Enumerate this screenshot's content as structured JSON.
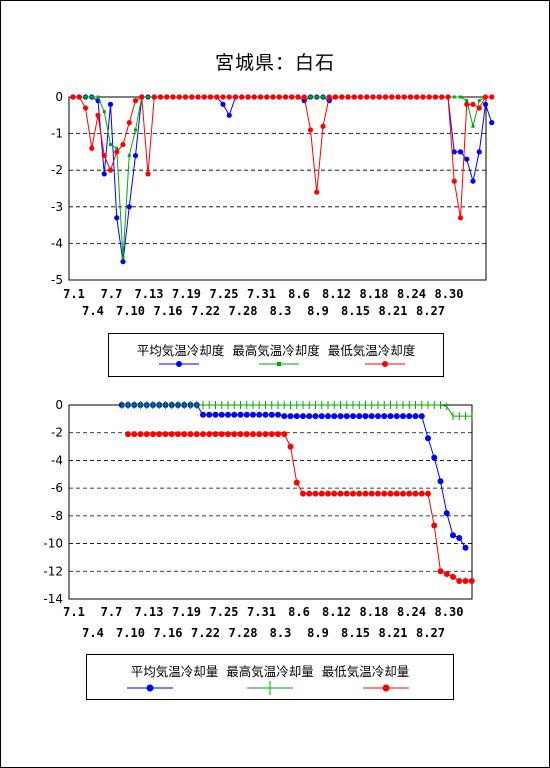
{
  "title": "宮城県：白石",
  "colors": {
    "avg": "#0000ff",
    "max": "#00aa00",
    "min": "#ff0000",
    "grid": "#000000"
  },
  "x_tick_rows": {
    "top": [
      "7.1",
      "7.7",
      "7.13",
      "7.19",
      "7.25",
      "7.31",
      "8.6",
      "8.12",
      "8.18",
      "8.24",
      "8.30"
    ],
    "bottom": [
      "7.4",
      "7.10",
      "7.16",
      "7.22",
      "7.28",
      "8.3",
      "8.9",
      "8.15",
      "8.21",
      "8.27"
    ]
  },
  "legends": {
    "daily": {
      "avg": "平均気温冷却度",
      "max": "最高気温冷却度",
      "min": "最低気温冷却度"
    },
    "cumulative": {
      "avg": "平均気温冷却量",
      "max": "最高気温冷却量",
      "min": "最低気温冷却量"
    }
  },
  "chart_data": [
    {
      "type": "line",
      "id": "daily",
      "x_start": "7.1",
      "y_ticks": [
        0,
        -1,
        -2,
        -3,
        -4,
        -5
      ],
      "ylim": [
        -5,
        0
      ],
      "grid": "horizontal dashed",
      "legend_placement": "bottom",
      "series": [
        {
          "name": "平均気温冷却度",
          "values": [
            0,
            0,
            0,
            0,
            -0.1,
            -2.1,
            -0.2,
            -3.3,
            -4.5,
            -3.0,
            -1.6,
            0,
            0,
            0,
            0,
            0,
            0,
            0,
            0,
            0,
            0,
            0,
            0,
            0,
            -0.2,
            -0.5,
            0,
            0,
            0,
            0,
            0,
            0,
            0,
            0,
            0,
            0,
            0,
            -0.1,
            0,
            0,
            0,
            -0.1,
            0,
            0,
            0,
            0,
            0,
            0,
            0,
            0,
            0,
            0,
            0,
            0,
            0,
            0,
            0,
            0,
            0,
            0,
            0,
            -1.5,
            -1.5,
            -1.7,
            -2.3,
            -1.5,
            -0.2,
            -0.7
          ]
        },
        {
          "name": "最高気温冷却度",
          "values": [
            0,
            0,
            0,
            0,
            0,
            -0.4,
            -1.3,
            -1.4,
            -4.4,
            -1.6,
            -0.9,
            0,
            0,
            0,
            0,
            0,
            0,
            0,
            0,
            0,
            0,
            0,
            0,
            0,
            0,
            0,
            0,
            0,
            0,
            0,
            0,
            0,
            0,
            0,
            0,
            0,
            0,
            0,
            0,
            0,
            0,
            0,
            0,
            0,
            0,
            0,
            0,
            0,
            0,
            0,
            0,
            0,
            0,
            0,
            0,
            0,
            0,
            0,
            0,
            0,
            0,
            0,
            0,
            -0.1,
            -0.8,
            -0.1,
            0,
            0
          ]
        },
        {
          "name": "最低気温冷却度",
          "values": [
            0,
            0,
            -0.3,
            -1.4,
            -0.5,
            -1.6,
            -2.0,
            -1.5,
            -1.3,
            -0.7,
            -0.1,
            0,
            -2.1,
            0,
            0,
            0,
            0,
            0,
            0,
            0,
            0,
            0,
            0,
            0,
            0,
            0,
            0,
            0,
            0,
            0,
            0,
            0,
            0,
            0,
            0,
            0,
            0,
            0,
            -0.9,
            -2.6,
            -0.8,
            0,
            0,
            0,
            0,
            0,
            0,
            0,
            0,
            0,
            0,
            0,
            0,
            0,
            0,
            0,
            0,
            0,
            0,
            0,
            0,
            -2.3,
            -3.3,
            -0.2,
            -0.2,
            -0.3,
            0,
            0
          ]
        }
      ]
    },
    {
      "type": "line",
      "id": "cumulative",
      "x_start": "7.1",
      "y_ticks": [
        0,
        -2,
        -4,
        -6,
        -8,
        -10,
        -12,
        -14
      ],
      "ylim": [
        -14,
        0
      ],
      "grid": "horizontal dashed",
      "legend_placement": "bottom",
      "series": [
        {
          "name": "平均気温冷却量",
          "values": [
            null,
            null,
            null,
            null,
            null,
            null,
            null,
            null,
            null,
            null,
            null,
            0,
            0,
            0,
            0,
            0,
            0,
            0,
            0,
            0,
            0,
            0,
            0,
            0,
            -0.7,
            -0.7,
            -0.7,
            -0.7,
            -0.7,
            -0.7,
            -0.7,
            -0.7,
            -0.7,
            -0.7,
            -0.7,
            -0.7,
            -0.7,
            -0.8,
            -0.8,
            -0.8,
            -0.8,
            -0.8,
            -0.8,
            -0.8,
            -0.8,
            -0.8,
            -0.8,
            -0.8,
            -0.8,
            -0.8,
            -0.8,
            -0.8,
            -0.8,
            -0.8,
            -0.8,
            -0.8,
            -0.8,
            -0.8,
            -0.8,
            -0.8,
            -2.4,
            -3.8,
            -5.5,
            -7.8,
            -9.4,
            -9.6,
            -10.3
          ]
        },
        {
          "name": "最高気温冷却量",
          "values": [
            null,
            null,
            null,
            null,
            null,
            null,
            null,
            null,
            null,
            null,
            null,
            0,
            0,
            0,
            0,
            0,
            0,
            0,
            0,
            0,
            0,
            0,
            0,
            0,
            0,
            0,
            0,
            0,
            0,
            0,
            0,
            0,
            0,
            0,
            0,
            0,
            0,
            0,
            0,
            0,
            0,
            0,
            0,
            0,
            0,
            0,
            0,
            0,
            0,
            0,
            0,
            0,
            0,
            0,
            0,
            0,
            0,
            0,
            0,
            0,
            0,
            0,
            0,
            -0.1,
            -0.8,
            -0.8,
            -0.8,
            -0.8
          ]
        },
        {
          "name": "最低気温冷却量",
          "values": [
            null,
            null,
            null,
            null,
            null,
            null,
            null,
            null,
            null,
            null,
            null,
            null,
            -2.1,
            -2.1,
            -2.1,
            -2.1,
            -2.1,
            -2.1,
            -2.1,
            -2.1,
            -2.1,
            -2.1,
            -2.1,
            -2.1,
            -2.1,
            -2.1,
            -2.1,
            -2.1,
            -2.1,
            -2.1,
            -2.1,
            -2.1,
            -2.1,
            -2.1,
            -2.1,
            -2.1,
            -2.1,
            -2.1,
            -3.0,
            -5.6,
            -6.4,
            -6.4,
            -6.4,
            -6.4,
            -6.4,
            -6.4,
            -6.4,
            -6.4,
            -6.4,
            -6.4,
            -6.4,
            -6.4,
            -6.4,
            -6.4,
            -6.4,
            -6.4,
            -6.4,
            -6.4,
            -6.4,
            -6.4,
            -6.4,
            -8.7,
            -12.0,
            -12.2,
            -12.4,
            -12.7,
            -12.7,
            -12.7
          ]
        }
      ]
    }
  ]
}
